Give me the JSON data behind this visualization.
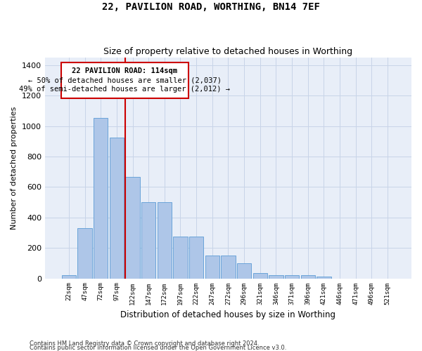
{
  "title": "22, PAVILION ROAD, WORTHING, BN14 7EF",
  "subtitle": "Size of property relative to detached houses in Worthing",
  "xlabel": "Distribution of detached houses by size in Worthing",
  "ylabel": "Number of detached properties",
  "footer_line1": "Contains HM Land Registry data © Crown copyright and database right 2024.",
  "footer_line2": "Contains public sector information licensed under the Open Government Licence v3.0.",
  "annotation_line1": "22 PAVILION ROAD: 114sqm",
  "annotation_line2": "← 50% of detached houses are smaller (2,037)",
  "annotation_line3": "49% of semi-detached houses are larger (2,012) →",
  "bar_categories": [
    "22sqm",
    "47sqm",
    "72sqm",
    "97sqm",
    "122sqm",
    "147sqm",
    "172sqm",
    "197sqm",
    "222sqm",
    "247sqm",
    "272sqm",
    "296sqm",
    "321sqm",
    "346sqm",
    "371sqm",
    "396sqm",
    "421sqm",
    "446sqm",
    "471sqm",
    "496sqm",
    "521sqm"
  ],
  "bar_values": [
    20,
    330,
    1055,
    925,
    665,
    500,
    500,
    275,
    275,
    150,
    150,
    100,
    35,
    20,
    20,
    20,
    13,
    0,
    0,
    0,
    0
  ],
  "bar_color": "#aec6e8",
  "bar_edge_color": "#5b9bd5",
  "redline_color": "#cc0000",
  "grid_color": "#c8d4e8",
  "background_color": "#e8eef8",
  "ylim": [
    0,
    1450
  ],
  "yticks": [
    0,
    200,
    400,
    600,
    800,
    1000,
    1200,
    1400
  ],
  "redline_bar_index": 4
}
